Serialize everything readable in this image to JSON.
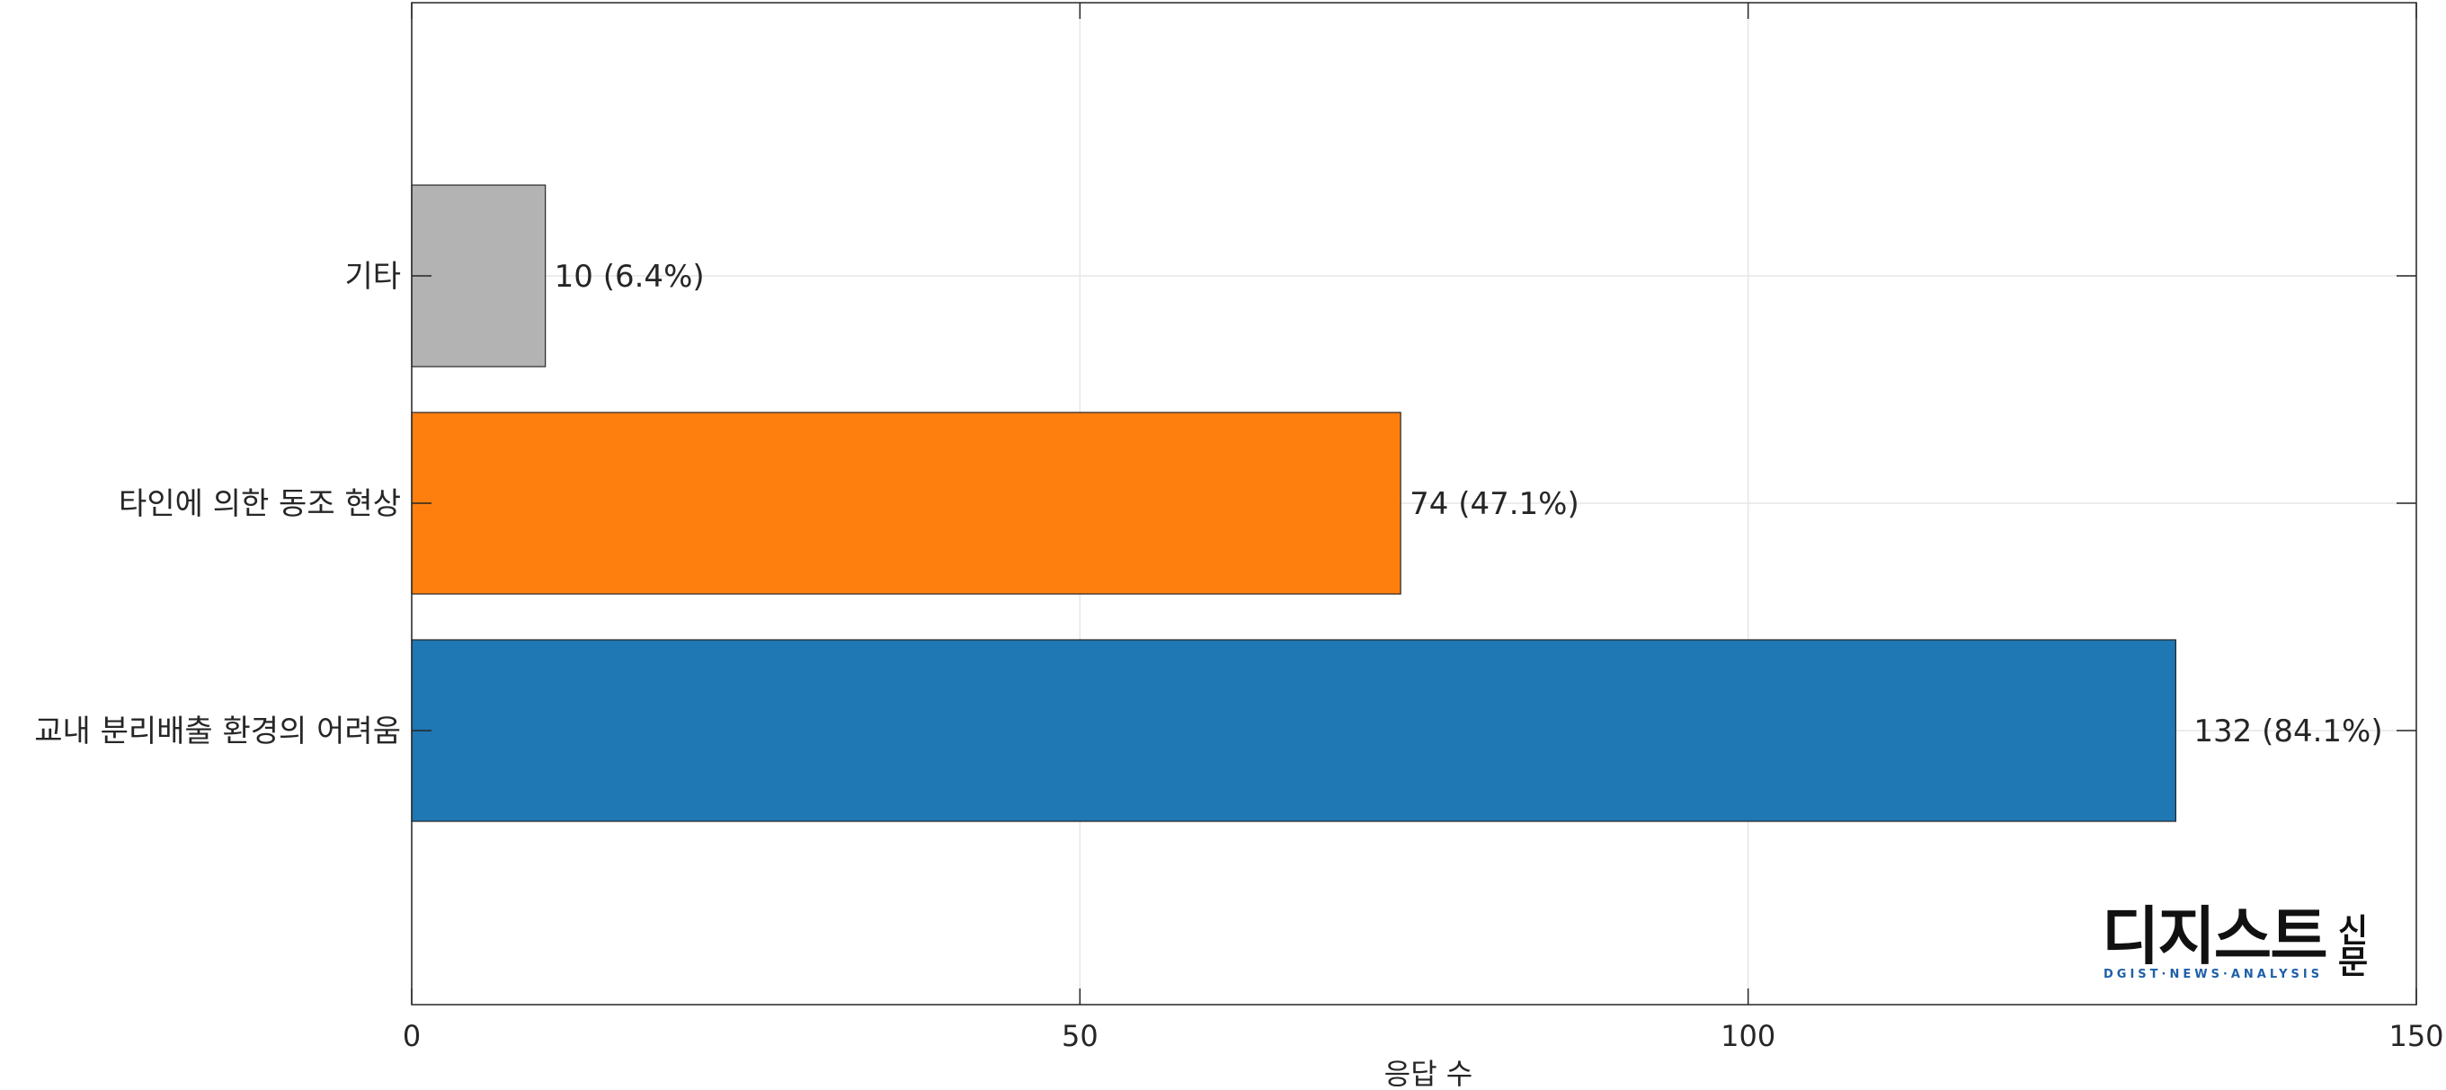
{
  "chart_data": {
    "type": "bar",
    "orientation": "horizontal",
    "categories": [
      "교내 분리배출 환경의 어려움",
      "타인에 의한 동조 현상",
      "기타"
    ],
    "values": [
      132,
      74,
      10
    ],
    "data_labels": [
      "132 (84.1%)",
      "74 (47.1%)",
      "10 (6.4%)"
    ],
    "colors": [
      "#1f77b4",
      "#ff7f0e",
      "#b3b3b3"
    ],
    "xlabel": "응답 수",
    "ylabel": "",
    "xlim": [
      0,
      150
    ],
    "xticks": [
      0,
      50,
      100,
      150
    ],
    "xtick_labels": [
      "0",
      "50",
      "100",
      "150"
    ],
    "grid": true,
    "legend": "none"
  },
  "logo": {
    "main_text": "디지스트",
    "side_text_top": "신",
    "side_text_bottom": "문",
    "tagline": "DGIST·NEWS·ANALYSIS"
  }
}
